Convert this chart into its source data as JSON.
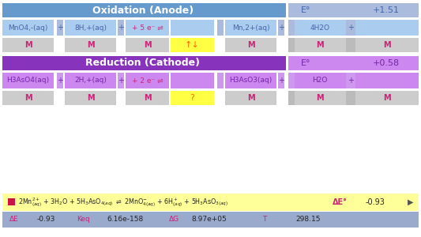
{
  "bg_color": "#ffffff",
  "blue_header": "#6699cc",
  "blue_light": "#aabbdd",
  "blue_cell": "#aaccee",
  "purple_header": "#8833bb",
  "purple_light": "#cc99ee",
  "purple_cell": "#cc88ee",
  "gray_cell": "#cccccc",
  "yellow_cell": "#ffff44",
  "yellow_bar": "#ffff99",
  "blue_bar": "#99aacc",
  "text_blue": "#4466aa",
  "text_purple": "#7722aa",
  "text_dark": "#222222",
  "text_pink": "#cc2277",
  "text_orange": "#ff6600",
  "text_white": "#ffffff",
  "oxidation_title": "Oxidation (Anode)",
  "reduction_title": "Reduction (Cathode)",
  "eo_label": "E°",
  "oxidation_eo": "+1.51",
  "reduction_eo": "+0.58",
  "delta_e_label": "ΔE°",
  "delta_e_val": "-0.93",
  "bottom_labels": [
    "ΔE",
    "-0.93",
    "Keq",
    "6.16e-158",
    "ΔG",
    "8.97e+05",
    "T",
    "298.15"
  ],
  "bottom_label_colors": [
    "pink",
    "dark",
    "pink",
    "dark",
    "pink",
    "dark",
    "pink",
    "dark"
  ]
}
